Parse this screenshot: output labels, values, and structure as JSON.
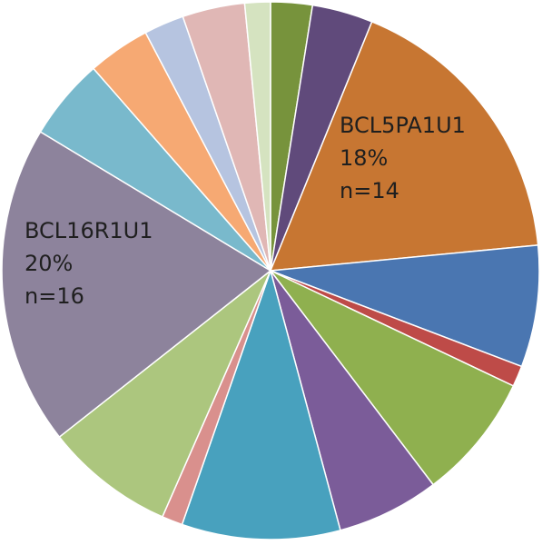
{
  "chart_data": {
    "type": "pie",
    "title": "",
    "start": "12 o'clock, clockwise",
    "slices": [
      {
        "value": 2.6,
        "color": "#77933c"
      },
      {
        "value": 3.8,
        "color": "#604a7b"
      },
      {
        "value": 18,
        "color": "#c77632",
        "name": "BCL5PA1U1",
        "percent_label": "18%",
        "n_label": "n=14"
      },
      {
        "value": 7.6,
        "color": "#4a76b1"
      },
      {
        "value": 1.3,
        "color": "#be4b48"
      },
      {
        "value": 7.9,
        "color": "#8fb04f"
      },
      {
        "value": 6.4,
        "color": "#7b5c99"
      },
      {
        "value": 9.9,
        "color": "#48a1be"
      },
      {
        "value": 1.3,
        "color": "#d9908d"
      },
      {
        "value": 8.1,
        "color": "#acc67e"
      },
      {
        "value": 20,
        "color": "#8d839c",
        "name": "BCL16R1U1",
        "percent_label": "20%",
        "n_label": "n=16"
      },
      {
        "value": 5.1,
        "color": "#79b9cc"
      },
      {
        "value": 3.9,
        "color": "#f6a973"
      },
      {
        "value": 2.5,
        "color": "#b6c4e0"
      },
      {
        "value": 3.9,
        "color": "#e0b7b5"
      },
      {
        "value": 1.6,
        "color": "#d5e3c0"
      }
    ]
  }
}
